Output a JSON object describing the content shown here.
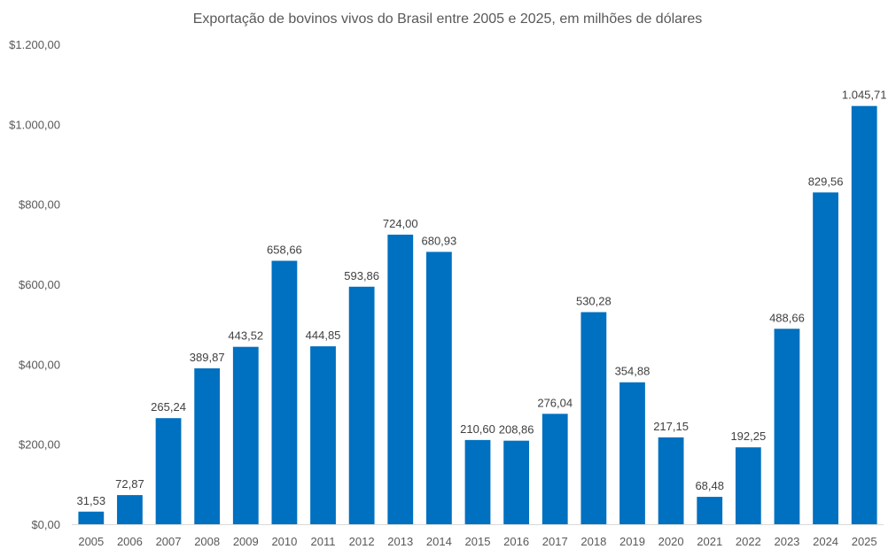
{
  "chart_data": {
    "type": "bar",
    "title": "Exportação de bovinos vivos do Brasil entre 2005 e 2025, em milhões de dólares",
    "xlabel": "",
    "ylabel": "",
    "categories": [
      "2005",
      "2006",
      "2007",
      "2008",
      "2009",
      "2010",
      "2011",
      "2012",
      "2013",
      "2014",
      "2015",
      "2016",
      "2017",
      "2018",
      "2019",
      "2020",
      "2021",
      "2022",
      "2023",
      "2024",
      "2025"
    ],
    "values": [
      31.53,
      72.87,
      265.24,
      389.87,
      443.52,
      658.66,
      444.85,
      593.86,
      724.0,
      680.93,
      210.6,
      208.86,
      276.04,
      530.28,
      354.88,
      217.15,
      68.48,
      192.25,
      488.66,
      829.56,
      1045.71
    ],
    "data_labels": [
      "31,53",
      "72,87",
      "265,24",
      "389,87",
      "443,52",
      "658,66",
      "444,85",
      "593,86",
      "724,00",
      "680,93",
      "210,60",
      "208,86",
      "276,04",
      "530,28",
      "354,88",
      "217,15",
      "68,48",
      "192,25",
      "488,66",
      "829,56",
      "1.045,71"
    ],
    "ylim": [
      0,
      1200
    ],
    "yticks": [
      0,
      200,
      400,
      600,
      800,
      1000,
      1200
    ],
    "ytick_labels": [
      "$0,00",
      "$200,00",
      "$400,00",
      "$600,00",
      "$800,00",
      "$1.000,00",
      "$1.200,00"
    ],
    "grid": false,
    "legend": "none",
    "bar_color": "#0070C0",
    "axis_color": "#D9D9D9"
  }
}
